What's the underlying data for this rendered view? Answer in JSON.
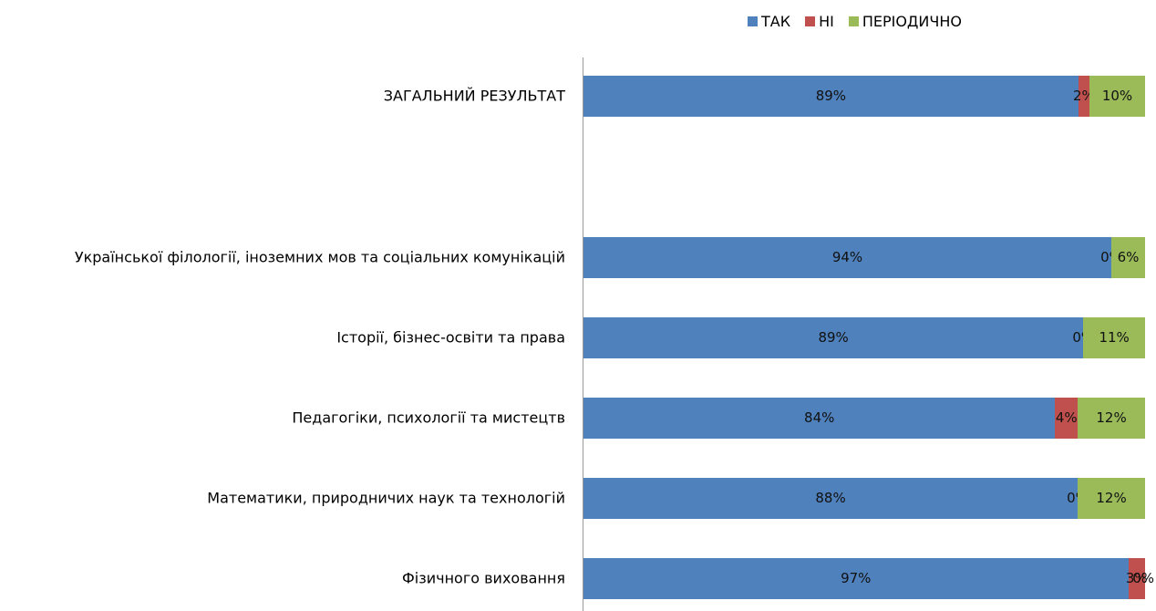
{
  "chart_data": {
    "type": "bar",
    "orientation": "horizontal",
    "stacked": true,
    "stack_mode": "percent",
    "legend": {
      "placement": "top-right"
    },
    "grid": false,
    "categories": [
      "ЗАГАЛЬНИЙ РЕЗУЛЬТАТ",
      "Української філології, іноземних мов та соціальних комунікацій",
      "Історії, бізнес-освіти та права",
      "Педагогіки, психології та мистецтв",
      "Математики, природничих наук та технологій",
      "Фізичного виховання"
    ],
    "series": [
      {
        "name": "ТАК",
        "color": "#4f81bd",
        "values": [
          89,
          94,
          89,
          84,
          88,
          97
        ],
        "labels": [
          "89%",
          "94%",
          "89%",
          "84%",
          "88%",
          "97%"
        ]
      },
      {
        "name": "НІ",
        "color": "#c0504d",
        "values": [
          2,
          0,
          0,
          4,
          0,
          3
        ],
        "labels": [
          "2%",
          "0%",
          "0%",
          "4%",
          "0%",
          "3%"
        ]
      },
      {
        "name": "ПЕРІОДИЧНО",
        "color": "#9bbb59",
        "values": [
          10,
          6,
          11,
          12,
          12,
          0
        ],
        "labels": [
          "10%",
          "6%",
          "11%",
          "12%",
          "12%",
          "0%"
        ]
      }
    ]
  }
}
